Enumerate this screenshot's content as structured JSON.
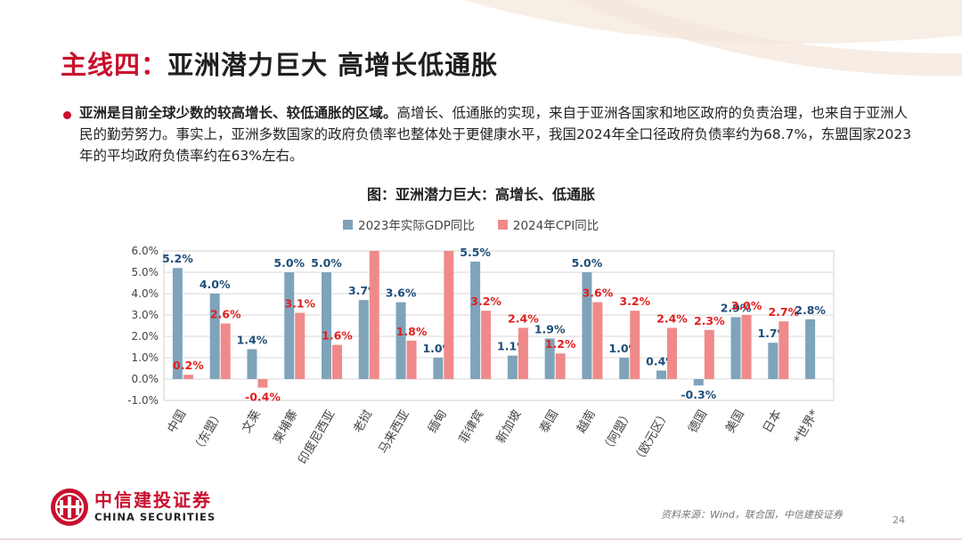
{
  "slide": {
    "title_prefix": "主线四：",
    "title_main": "亚洲潜力巨大  高增长低通胀",
    "bullet_bold": "亚洲是目前全球少数的较高增长、较低通胀的区域。",
    "bullet_text": "高增长、低通胀的实现，来自于亚洲各国家和地区政府的负责治理，也来自于亚洲人民的勤劳努力。事实上，亚洲多数国家的政府负债率也整体处于更健康水平，我国2024年全口径政府负债率约为68.7%，东盟国家2023年的平均政府负债率约在63%左右。",
    "chart_heading": "图：亚洲潜力巨大：高增长、低通胀"
  },
  "colors": {
    "accent": "#c8102e",
    "gdp": "#7fa3bb",
    "cpi": "#f08a8a",
    "gdp_label": "#1f4e79",
    "cpi_label": "#e0201e"
  },
  "chart_data": {
    "type": "bar",
    "title": "图：亚洲潜力巨大：高增长、低通胀",
    "categories": [
      "中国",
      "（东盟）",
      "文莱",
      "柬埔寨",
      "印度尼西亚",
      "老挝",
      "马来西亚",
      "缅甸",
      "菲律宾",
      "新加坡",
      "泰国",
      "越南",
      "（阿盟）",
      "（欧元区）",
      "德国",
      "美国",
      "日本",
      "*世界*"
    ],
    "series": [
      {
        "name": "2023年实际GDP同比",
        "values": [
          5.2,
          4.0,
          1.4,
          5.0,
          5.0,
          3.7,
          3.6,
          1.0,
          5.5,
          1.1,
          1.9,
          5.0,
          1.0,
          0.4,
          -0.3,
          2.9,
          1.7,
          2.8
        ],
        "labels": [
          "5.2%",
          "4.0%",
          "1.4%",
          "5.0%",
          "5.0%",
          "3.7%",
          "3.6%",
          "1.0%",
          "5.5%",
          "1.1%",
          "1.9%",
          "5.0%",
          "1.0%",
          "0.4%",
          "-0.3%",
          "2.9%",
          "1.7%",
          "2.8%"
        ]
      },
      {
        "name": "2024年CPI同比",
        "values": [
          0.2,
          2.6,
          -0.4,
          3.1,
          1.6,
          6.0,
          1.8,
          6.0,
          3.2,
          2.4,
          1.2,
          3.6,
          3.2,
          2.4,
          2.3,
          3.0,
          2.7,
          null
        ],
        "labels": [
          "0.2%",
          "2.6%",
          "-0.4%",
          "3.1%",
          "1.6%",
          "",
          "1.8%",
          "",
          "3.2%",
          "2.4%",
          "1.2%",
          "3.6%",
          "3.2%",
          "2.4%",
          "2.3%",
          "3.0%",
          "2.7%",
          ""
        ]
      }
    ],
    "yticks": [
      "6.0%",
      "5.0%",
      "4.0%",
      "3.0%",
      "2.0%",
      "1.0%",
      "0.0%",
      "-1.0%"
    ],
    "ylim": [
      -1.0,
      6.0
    ],
    "legend_position": "top",
    "grid": true
  },
  "footer": {
    "logo_cn": "中信建投证券",
    "logo_en": "CHINA SECURITIES",
    "source": "资料来源：Wind，联合国，中信建投证券",
    "page": "24"
  }
}
